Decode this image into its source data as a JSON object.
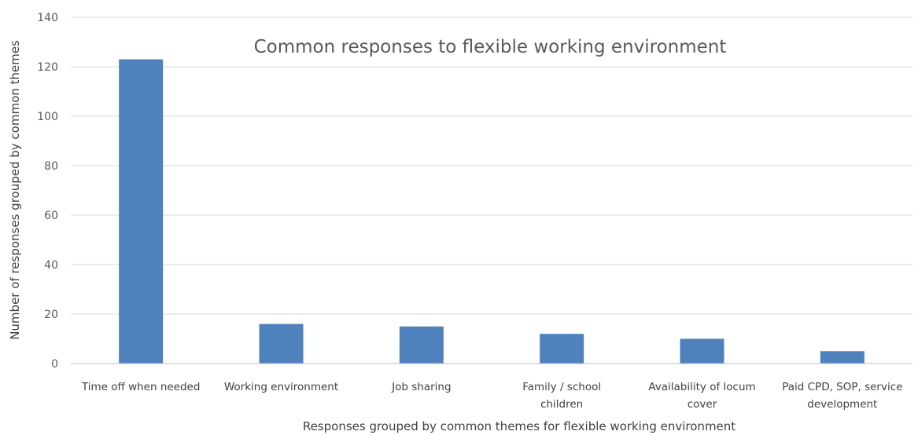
{
  "chart_data": {
    "type": "bar",
    "title": "Common responses to flexible working environment",
    "xlabel": "Responses grouped by common themes for flexible working environment",
    "ylabel": "Number of responses grouped by common themes",
    "categories": [
      [
        "Time off when needed"
      ],
      [
        "Working environment"
      ],
      [
        "Job sharing"
      ],
      [
        "Family / school",
        "children"
      ],
      [
        "Availability of locum",
        "cover"
      ],
      [
        "Paid CPD, SOP, service",
        "development"
      ]
    ],
    "values": [
      123,
      16,
      15,
      12,
      10,
      5
    ],
    "ylim": [
      0,
      140
    ],
    "yticks": [
      0,
      20,
      40,
      60,
      80,
      100,
      120,
      140
    ],
    "grid": true,
    "legend": "none",
    "bar_color": "#4f81bd"
  }
}
